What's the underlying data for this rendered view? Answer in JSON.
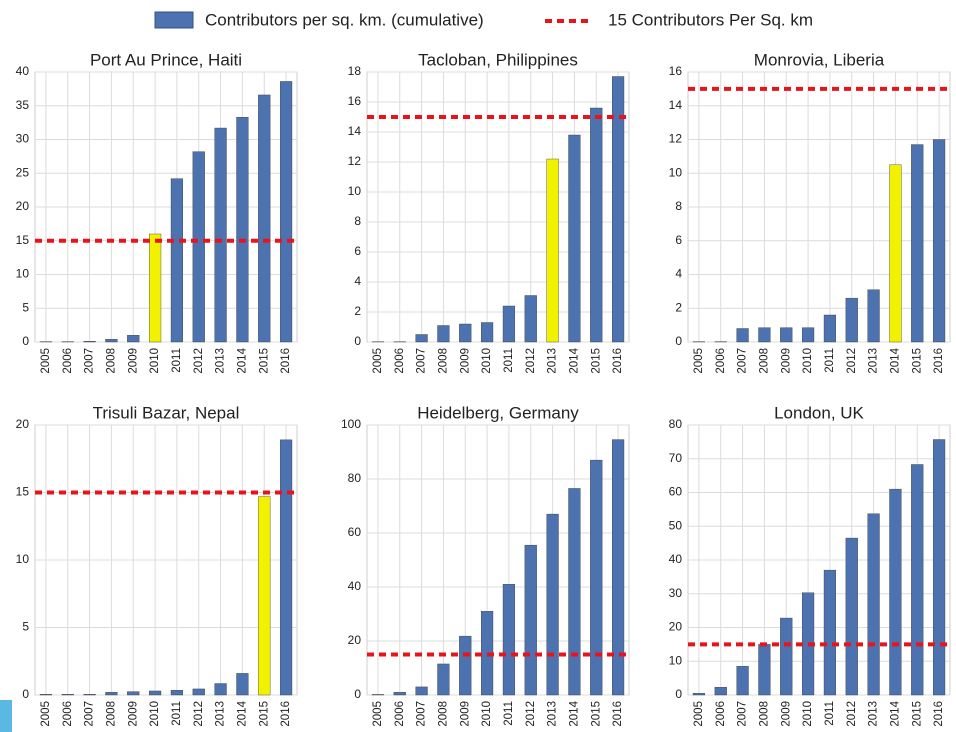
{
  "legend": [
    {
      "label": "Contributors per sq. km. (cumulative)",
      "color": "#4c72b0"
    },
    {
      "label": "15 Contributors Per Sq. km",
      "color": "#e8141b"
    }
  ],
  "chart_data": [
    {
      "type": "bar",
      "title": "Port Au Prince, Haiti",
      "categories": [
        "2005",
        "2006",
        "2007",
        "2008",
        "2009",
        "2010",
        "2011",
        "2012",
        "2013",
        "2014",
        "2015",
        "2016"
      ],
      "values": [
        0.05,
        0.05,
        0.1,
        0.4,
        1.0,
        16,
        24.2,
        28.2,
        31.7,
        33.3,
        36.6,
        38.6
      ],
      "colors": [
        "#4c72b0",
        "#4c72b0",
        "#4c72b0",
        "#4c72b0",
        "#4c72b0",
        "#f2f200",
        "#4c72b0",
        "#4c72b0",
        "#4c72b0",
        "#4c72b0",
        "#4c72b0",
        "#4c72b0"
      ],
      "ylim": [
        0,
        40
      ],
      "yticks": [
        0,
        5,
        10,
        15,
        20,
        25,
        30,
        35,
        40
      ],
      "hline": {
        "value": 15,
        "color": "#e8141b"
      },
      "grid": true
    },
    {
      "type": "bar",
      "title": "Tacloban, Philippines",
      "categories": [
        "2005",
        "2006",
        "2007",
        "2008",
        "2009",
        "2010",
        "2011",
        "2012",
        "2013",
        "2014",
        "2015",
        "2016"
      ],
      "values": [
        0.02,
        0.02,
        0.5,
        1.1,
        1.2,
        1.3,
        2.4,
        3.1,
        12.2,
        13.8,
        15.6,
        17.7
      ],
      "colors": [
        "#4c72b0",
        "#4c72b0",
        "#4c72b0",
        "#4c72b0",
        "#4c72b0",
        "#4c72b0",
        "#4c72b0",
        "#4c72b0",
        "#f2f200",
        "#4c72b0",
        "#4c72b0",
        "#4c72b0"
      ],
      "ylim": [
        0,
        18
      ],
      "yticks": [
        0,
        2,
        4,
        6,
        8,
        10,
        12,
        14,
        16,
        18
      ],
      "hline": {
        "value": 15,
        "color": "#e8141b"
      },
      "grid": true
    },
    {
      "type": "bar",
      "title": "Monrovia, Liberia",
      "categories": [
        "2005",
        "2006",
        "2007",
        "2008",
        "2009",
        "2010",
        "2011",
        "2012",
        "2013",
        "2014",
        "2015",
        "2016"
      ],
      "values": [
        0.02,
        0.02,
        0.8,
        0.85,
        0.85,
        0.85,
        1.6,
        2.6,
        3.1,
        10.5,
        11.7,
        12.0
      ],
      "colors": [
        "#4c72b0",
        "#4c72b0",
        "#4c72b0",
        "#4c72b0",
        "#4c72b0",
        "#4c72b0",
        "#4c72b0",
        "#4c72b0",
        "#4c72b0",
        "#f2f200",
        "#4c72b0",
        "#4c72b0"
      ],
      "ylim": [
        0,
        16
      ],
      "yticks": [
        0,
        2,
        4,
        6,
        8,
        10,
        12,
        14,
        16
      ],
      "hline": {
        "value": 15,
        "color": "#e8141b"
      },
      "grid": true
    },
    {
      "type": "bar",
      "title": "Trisuli Bazar, Nepal",
      "categories": [
        "2005",
        "2006",
        "2007",
        "2008",
        "2009",
        "2010",
        "2011",
        "2012",
        "2013",
        "2014",
        "2015",
        "2016"
      ],
      "values": [
        0.05,
        0.05,
        0.05,
        0.2,
        0.25,
        0.3,
        0.35,
        0.45,
        0.85,
        1.6,
        14.7,
        18.9
      ],
      "colors": [
        "#4c72b0",
        "#4c72b0",
        "#4c72b0",
        "#4c72b0",
        "#4c72b0",
        "#4c72b0",
        "#4c72b0",
        "#4c72b0",
        "#4c72b0",
        "#4c72b0",
        "#f2f200",
        "#4c72b0"
      ],
      "ylim": [
        0,
        20
      ],
      "yticks": [
        0,
        5,
        10,
        15,
        20
      ],
      "hline": {
        "value": 15,
        "color": "#e8141b"
      },
      "grid": true
    },
    {
      "type": "bar",
      "title": "Heidelberg, Germany",
      "categories": [
        "2005",
        "2006",
        "2007",
        "2008",
        "2009",
        "2010",
        "2011",
        "2012",
        "2013",
        "2014",
        "2015",
        "2016"
      ],
      "values": [
        0.2,
        1,
        3,
        11.5,
        21.8,
        31,
        41,
        55.5,
        67,
        76.5,
        87,
        94.6
      ],
      "colors": [
        "#4c72b0",
        "#4c72b0",
        "#4c72b0",
        "#4c72b0",
        "#4c72b0",
        "#4c72b0",
        "#4c72b0",
        "#4c72b0",
        "#4c72b0",
        "#4c72b0",
        "#4c72b0",
        "#4c72b0"
      ],
      "ylim": [
        0,
        100
      ],
      "yticks": [
        0,
        20,
        40,
        60,
        80,
        100
      ],
      "hline": {
        "value": 15,
        "color": "#e8141b"
      },
      "grid": true
    },
    {
      "type": "bar",
      "title": "London, UK",
      "categories": [
        "2005",
        "2006",
        "2007",
        "2008",
        "2009",
        "2010",
        "2011",
        "2012",
        "2013",
        "2014",
        "2015",
        "2016"
      ],
      "values": [
        0.5,
        2.3,
        8.5,
        15,
        22.8,
        30.3,
        37,
        46.5,
        53.7,
        61,
        68.3,
        75.7
      ],
      "colors": [
        "#4c72b0",
        "#4c72b0",
        "#4c72b0",
        "#4c72b0",
        "#4c72b0",
        "#4c72b0",
        "#4c72b0",
        "#4c72b0",
        "#4c72b0",
        "#4c72b0",
        "#4c72b0",
        "#4c72b0"
      ],
      "ylim": [
        0,
        80
      ],
      "yticks": [
        0,
        10,
        20,
        30,
        40,
        50,
        60,
        70,
        80
      ],
      "hline": {
        "value": 15,
        "color": "#e8141b"
      },
      "grid": true
    }
  ]
}
